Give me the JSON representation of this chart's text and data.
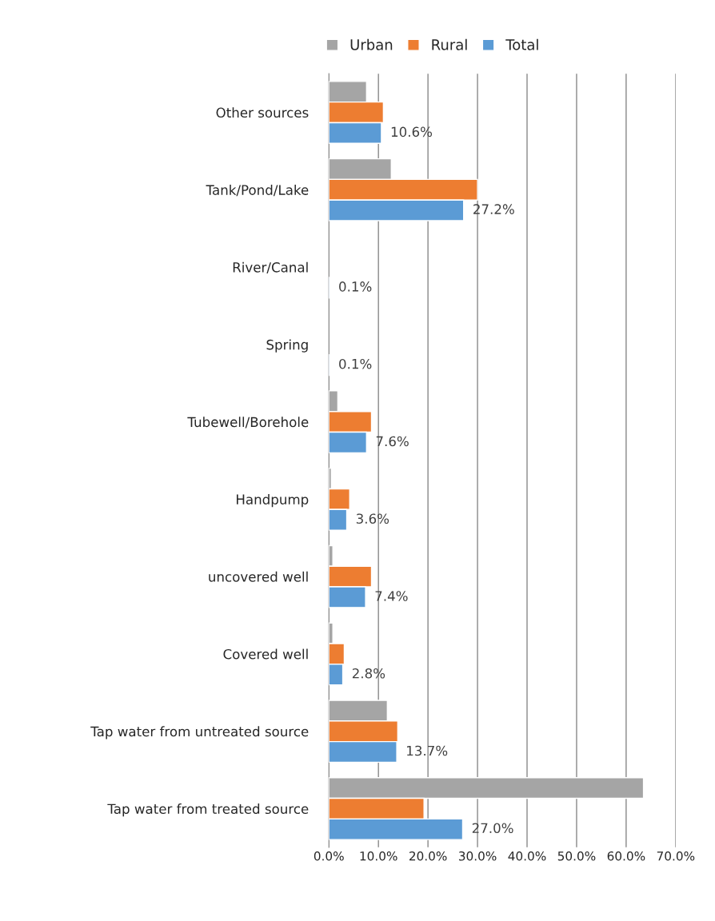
{
  "chart_data": {
    "type": "bar",
    "orientation": "horizontal",
    "categories": [
      "Other sources",
      "Tank/Pond/Lake",
      "River/Canal",
      "Spring",
      "Tubewell/Borehole",
      "Handpump",
      "uncovered well",
      "Covered well",
      "Tap water from untreated source",
      "Tap water from treated source"
    ],
    "series": [
      {
        "name": "Urban",
        "color": "#a5a5a5",
        "values": [
          7.6,
          12.6,
          null,
          null,
          1.8,
          0.5,
          0.8,
          0.8,
          11.8,
          63.5
        ]
      },
      {
        "name": "Rural",
        "color": "#ed7d31",
        "values": [
          11.0,
          30.0,
          null,
          null,
          8.6,
          4.2,
          8.6,
          3.1,
          13.9,
          19.2
        ]
      },
      {
        "name": "Total",
        "color": "#5b9bd5",
        "values": [
          10.6,
          27.2,
          0.1,
          0.1,
          7.6,
          3.6,
          7.4,
          2.8,
          13.7,
          27.0
        ],
        "value_labels": [
          "10.6%",
          "27.2%",
          "0.1%",
          "0.1%",
          "7.6%",
          "3.6%",
          "7.4%",
          "2.8%",
          "13.7%",
          "27.0%"
        ]
      }
    ],
    "xlim": [
      0,
      70
    ],
    "xticks": [
      {
        "value": 0,
        "label": "0.0%"
      },
      {
        "value": 10,
        "label": "10.0%"
      },
      {
        "value": 20,
        "label": "20.0%"
      },
      {
        "value": 30,
        "label": "30.0%"
      },
      {
        "value": 40,
        "label": "40.0%"
      },
      {
        "value": 50,
        "label": "50.0%"
      },
      {
        "value": 60,
        "label": "60.0%"
      },
      {
        "value": 70,
        "label": "70.0%"
      }
    ],
    "grid": "x",
    "legend": "top"
  }
}
